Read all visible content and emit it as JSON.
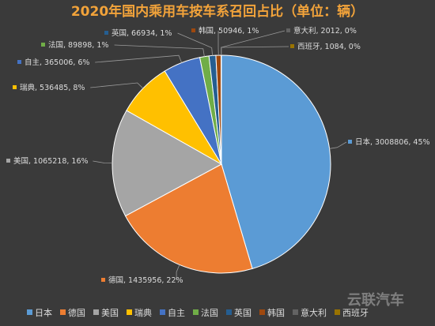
{
  "watermark": "云联汽车",
  "chart_data": {
    "type": "pie",
    "title": "2020年国内乘用车按车系召回占比（单位：辆）",
    "legend_position": "bottom",
    "slices": [
      {
        "name": "日本",
        "value": 3008806,
        "percent": "45%",
        "color": "#5b9bd5"
      },
      {
        "name": "德国",
        "value": 1435956,
        "percent": "22%",
        "color": "#ed7d31"
      },
      {
        "name": "美国",
        "value": 1065218,
        "percent": "16%",
        "color": "#a5a5a5"
      },
      {
        "name": "瑞典",
        "value": 536485,
        "percent": "8%",
        "color": "#ffc000"
      },
      {
        "name": "自主",
        "value": 365006,
        "percent": "6%",
        "color": "#4472c4"
      },
      {
        "name": "法国",
        "value": 89898,
        "percent": "1%",
        "color": "#70ad47"
      },
      {
        "name": "英国",
        "value": 66934,
        "percent": "1%",
        "color": "#255e91"
      },
      {
        "name": "韩国",
        "value": 50946,
        "percent": "1%",
        "color": "#9e480e"
      },
      {
        "name": "意大利",
        "value": 2012,
        "percent": "0%",
        "color": "#636363"
      },
      {
        "name": "西班牙",
        "value": 1084,
        "percent": "0%",
        "color": "#997300"
      }
    ]
  }
}
